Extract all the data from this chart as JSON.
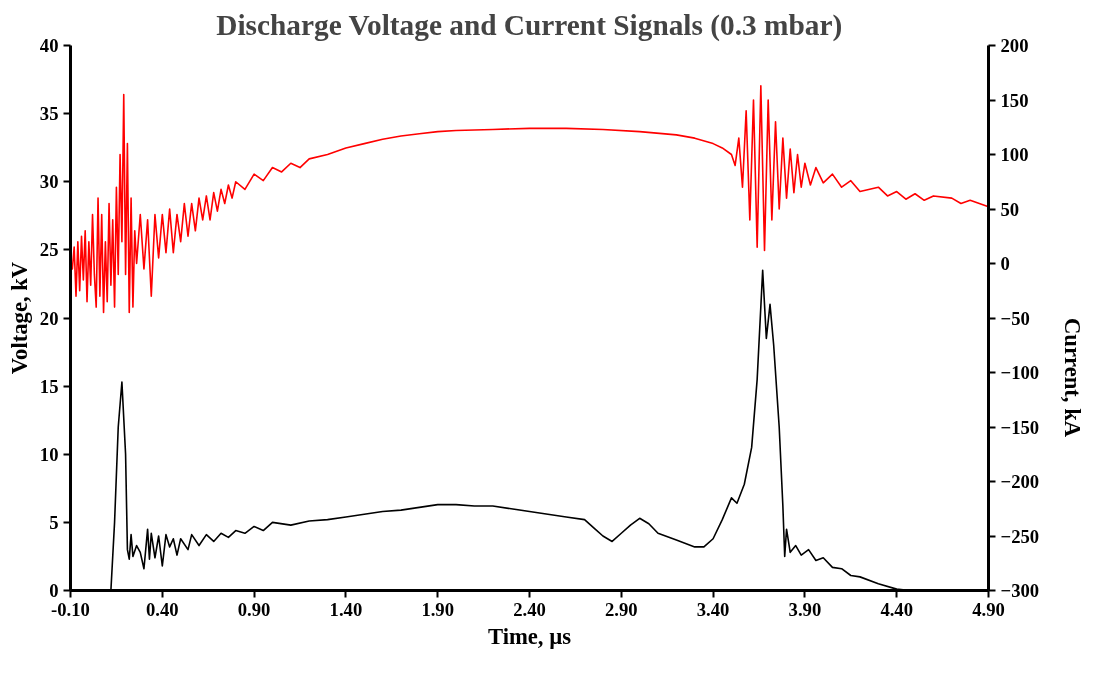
{
  "chart_data": {
    "type": "line",
    "title": "Discharge Voltage and Current Signals (0.3 mbar)",
    "xlabel": "Time, µs",
    "ylabel": "Voltage, kV",
    "y2label": "Current, kA",
    "xlim": [
      -0.1,
      4.9
    ],
    "xticks": [
      {
        "value": -0.1,
        "label": "-0.10"
      },
      {
        "value": 0.4,
        "label": "0.40"
      },
      {
        "value": 0.9,
        "label": "0.90"
      },
      {
        "value": 1.4,
        "label": "1.40"
      },
      {
        "value": 1.9,
        "label": "1.90"
      },
      {
        "value": 2.4,
        "label": "2.40"
      },
      {
        "value": 2.9,
        "label": "2.90"
      },
      {
        "value": 3.4,
        "label": "3.40"
      },
      {
        "value": 3.9,
        "label": "3.90"
      },
      {
        "value": 4.4,
        "label": "4.40"
      },
      {
        "value": 4.9,
        "label": "4.90"
      }
    ],
    "ylim": [
      0,
      40
    ],
    "yticks": [
      0,
      5,
      10,
      15,
      20,
      25,
      30,
      35,
      40
    ],
    "y2lim": [
      -300,
      200
    ],
    "y2ticks": [
      -300,
      -250,
      -200,
      -150,
      -100,
      -50,
      0,
      50,
      100,
      150,
      200
    ],
    "grid": false,
    "marker": "none",
    "line_style": "solid",
    "series": [
      {
        "color": "#ff0000",
        "axis": "y2",
        "x": [
          -0.1,
          -0.09,
          -0.08,
          -0.07,
          -0.06,
          -0.05,
          -0.04,
          -0.03,
          -0.02,
          -0.01,
          0.0,
          0.01,
          0.02,
          0.03,
          0.04,
          0.05,
          0.06,
          0.07,
          0.08,
          0.09,
          0.1,
          0.11,
          0.12,
          0.13,
          0.14,
          0.15,
          0.16,
          0.17,
          0.18,
          0.19,
          0.2,
          0.21,
          0.22,
          0.23,
          0.24,
          0.25,
          0.26,
          0.28,
          0.3,
          0.32,
          0.34,
          0.36,
          0.38,
          0.4,
          0.42,
          0.44,
          0.46,
          0.48,
          0.5,
          0.52,
          0.54,
          0.56,
          0.58,
          0.6,
          0.62,
          0.64,
          0.66,
          0.68,
          0.7,
          0.72,
          0.74,
          0.76,
          0.78,
          0.8,
          0.85,
          0.9,
          0.95,
          1.0,
          1.05,
          1.1,
          1.15,
          1.2,
          1.3,
          1.4,
          1.5,
          1.6,
          1.7,
          1.8,
          1.9,
          2.0,
          2.2,
          2.4,
          2.6,
          2.8,
          3.0,
          3.2,
          3.3,
          3.4,
          3.45,
          3.5,
          3.52,
          3.54,
          3.56,
          3.58,
          3.6,
          3.62,
          3.64,
          3.66,
          3.68,
          3.7,
          3.72,
          3.74,
          3.76,
          3.78,
          3.8,
          3.82,
          3.84,
          3.86,
          3.88,
          3.9,
          3.93,
          3.96,
          4.0,
          4.05,
          4.1,
          4.15,
          4.2,
          4.3,
          4.35,
          4.4,
          4.45,
          4.5,
          4.55,
          4.6,
          4.7,
          4.75,
          4.8,
          4.9
        ],
        "values": [
          0,
          -5,
          15,
          -30,
          20,
          -25,
          25,
          -15,
          30,
          -35,
          20,
          -20,
          45,
          -10,
          -40,
          60,
          -30,
          45,
          -45,
          20,
          -35,
          55,
          -20,
          40,
          -40,
          70,
          -10,
          100,
          20,
          155,
          -10,
          110,
          -45,
          60,
          -40,
          30,
          0,
          45,
          -5,
          40,
          -30,
          45,
          5,
          45,
          10,
          50,
          10,
          45,
          20,
          55,
          25,
          55,
          30,
          60,
          40,
          62,
          40,
          65,
          48,
          68,
          55,
          72,
          60,
          75,
          68,
          82,
          76,
          88,
          84,
          92,
          88,
          96,
          100,
          106,
          110,
          114,
          117,
          119,
          121,
          122,
          123,
          124,
          124,
          123,
          121,
          118,
          115,
          110,
          106,
          100,
          90,
          115,
          70,
          140,
          40,
          150,
          15,
          163,
          12,
          150,
          40,
          130,
          50,
          115,
          60,
          105,
          65,
          100,
          70,
          92,
          72,
          88,
          74,
          82,
          70,
          76,
          66,
          70,
          62,
          66,
          59,
          64,
          58,
          62,
          60,
          55,
          58,
          52
        ]
      },
      {
        "color": "#000000",
        "axis": "y",
        "x": [
          -0.1,
          0.12,
          0.14,
          0.16,
          0.18,
          0.2,
          0.21,
          0.22,
          0.23,
          0.24,
          0.26,
          0.28,
          0.3,
          0.32,
          0.33,
          0.34,
          0.36,
          0.38,
          0.4,
          0.42,
          0.44,
          0.46,
          0.48,
          0.5,
          0.54,
          0.56,
          0.6,
          0.64,
          0.68,
          0.72,
          0.76,
          0.8,
          0.85,
          0.9,
          0.95,
          1.0,
          1.1,
          1.2,
          1.3,
          1.4,
          1.5,
          1.6,
          1.7,
          1.8,
          1.9,
          2.0,
          2.1,
          2.2,
          2.3,
          2.4,
          2.5,
          2.6,
          2.7,
          2.75,
          2.8,
          2.85,
          2.9,
          2.95,
          3.0,
          3.05,
          3.1,
          3.2,
          3.3,
          3.35,
          3.4,
          3.45,
          3.5,
          3.53,
          3.57,
          3.61,
          3.64,
          3.67,
          3.69,
          3.71,
          3.73,
          3.76,
          3.78,
          3.79,
          3.8,
          3.82,
          3.85,
          3.88,
          3.92,
          3.96,
          4.0,
          4.05,
          4.1,
          4.15,
          4.2,
          4.3,
          4.4,
          4.47
        ],
        "values": [
          0,
          0,
          5,
          12,
          15.3,
          10,
          3,
          2.3,
          4.1,
          2.5,
          3.3,
          2.8,
          1.6,
          4.5,
          2.3,
          4.2,
          2.4,
          4.0,
          1.8,
          4.1,
          3.2,
          3.8,
          2.6,
          3.8,
          3.0,
          4.1,
          3.3,
          4.1,
          3.6,
          4.2,
          3.9,
          4.4,
          4.2,
          4.7,
          4.4,
          5.0,
          4.8,
          5.1,
          5.2,
          5.4,
          5.6,
          5.8,
          5.9,
          6.1,
          6.3,
          6.3,
          6.2,
          6.2,
          6.0,
          5.8,
          5.6,
          5.4,
          5.2,
          4.6,
          4.0,
          3.6,
          4.2,
          4.8,
          5.3,
          4.9,
          4.2,
          3.7,
          3.2,
          3.2,
          3.8,
          5.2,
          6.8,
          6.4,
          7.8,
          10.5,
          15.5,
          23.5,
          18.5,
          21.0,
          18,
          12,
          6.2,
          2.5,
          4.5,
          2.8,
          3.3,
          2.6,
          3.0,
          2.2,
          2.4,
          1.7,
          1.6,
          1.1,
          1.0,
          0.5,
          0.1,
          0
        ]
      }
    ]
  }
}
